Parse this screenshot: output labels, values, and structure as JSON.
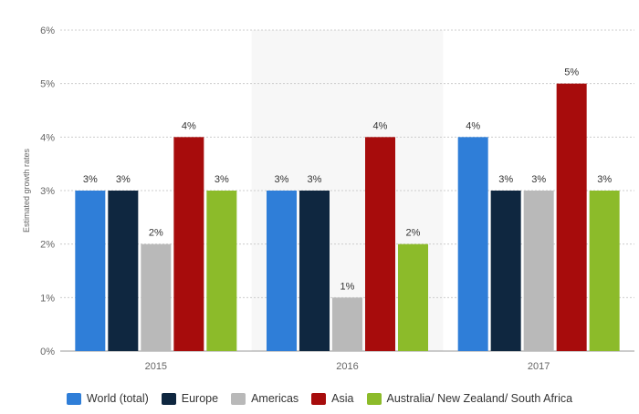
{
  "chart_data": {
    "type": "bar",
    "categories": [
      "2015",
      "2016",
      "2017"
    ],
    "series": [
      {
        "name": "World (total)",
        "color": "#2f7ed8",
        "values": [
          3,
          3,
          4
        ],
        "labels": [
          "3%",
          "3%",
          "4%"
        ]
      },
      {
        "name": "Europe",
        "color": "#0f2740",
        "values": [
          3,
          3,
          3
        ],
        "labels": [
          "3%",
          "3%",
          "3%"
        ]
      },
      {
        "name": "Americas",
        "color": "#b9b9b9",
        "values": [
          2,
          1,
          3
        ],
        "labels": [
          "2%",
          "1%",
          "3%"
        ]
      },
      {
        "name": "Asia",
        "color": "#a70c0c",
        "values": [
          4,
          4,
          5
        ],
        "labels": [
          "4%",
          "4%",
          "5%"
        ]
      },
      {
        "name": "Australia/ New Zealand/ South Africa",
        "color": "#8cbb2a",
        "values": [
          3,
          2,
          3
        ],
        "labels": [
          "3%",
          "2%",
          "3%"
        ]
      }
    ],
    "title": "",
    "xlabel": "",
    "ylabel": "Estimated growth rates",
    "ylim": [
      0,
      6
    ],
    "yticks": [
      0,
      1,
      2,
      3,
      4,
      5,
      6
    ],
    "ytick_labels": [
      "0%",
      "1%",
      "2%",
      "3%",
      "4%",
      "5%",
      "6%"
    ],
    "highlighted_category": "2016",
    "grid": true,
    "legend": "bottom"
  }
}
